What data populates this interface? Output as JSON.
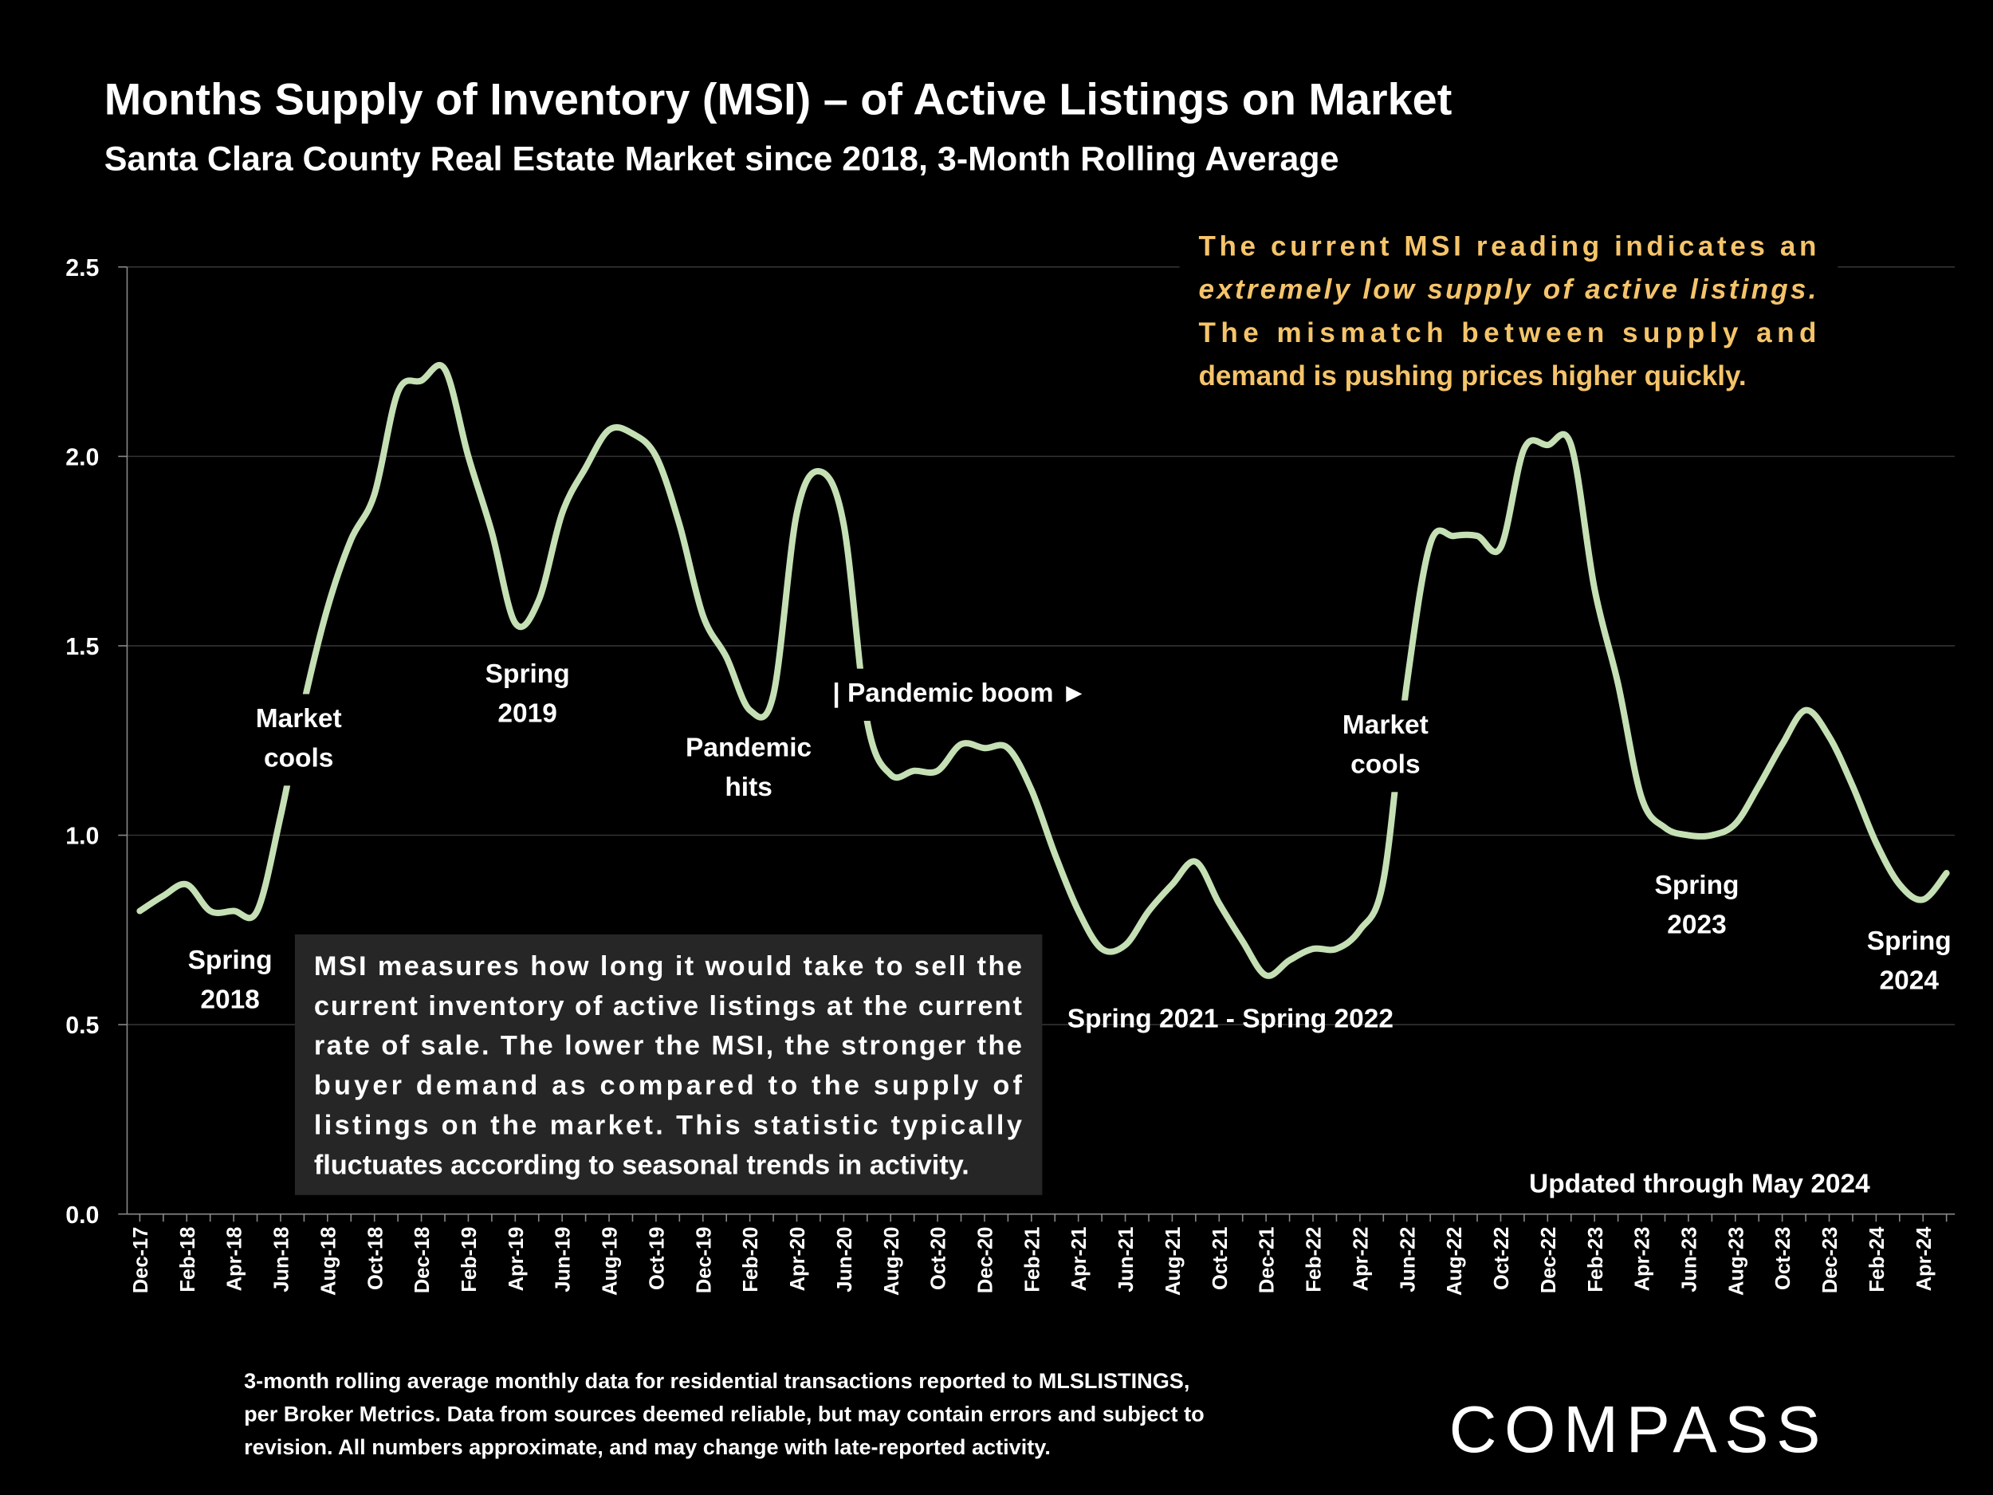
{
  "title": "Months Supply of Inventory (MSI) – of Active Listings on Market",
  "subtitle": "Santa Clara County Real Estate Market since 2018, 3-Month Rolling Average",
  "chart_data": {
    "type": "line",
    "ylim": [
      0,
      2.5
    ],
    "yticks": [
      "0.0",
      "0.5",
      "1.0",
      "1.5",
      "2.0",
      "2.5"
    ],
    "grid": true,
    "line_color": "#c5e0b4",
    "x_tick_labels": [
      "Dec-17",
      "Feb-18",
      "Apr-18",
      "Jun-18",
      "Aug-18",
      "Oct-18",
      "Dec-18",
      "Feb-19",
      "Apr-19",
      "Jun-19",
      "Aug-19",
      "Oct-19",
      "Dec-19",
      "Feb-20",
      "Apr-20",
      "Jun-20",
      "Aug-20",
      "Oct-20",
      "Dec-20",
      "Feb-21",
      "Apr-21",
      "Jun-21",
      "Aug-21",
      "Oct-21",
      "Dec-21",
      "Feb-22",
      "Apr-22",
      "Jun-22",
      "Aug-22",
      "Oct-22",
      "Dec-22",
      "Feb-23",
      "Apr-23",
      "Jun-23",
      "Aug-23",
      "Oct-23",
      "Dec-23",
      "Feb-24",
      "Apr-24"
    ],
    "x_start": "Dec-17",
    "x_end": "May-24",
    "values": [
      0.8,
      0.84,
      0.87,
      0.8,
      0.8,
      0.8,
      1.05,
      1.35,
      1.6,
      1.78,
      1.9,
      2.17,
      2.2,
      2.23,
      2.0,
      1.8,
      1.56,
      1.62,
      1.85,
      1.97,
      2.07,
      2.06,
      2.0,
      1.82,
      1.58,
      1.47,
      1.33,
      1.37,
      1.85,
      1.96,
      1.82,
      1.3,
      1.16,
      1.17,
      1.17,
      1.24,
      1.23,
      1.23,
      1.12,
      0.95,
      0.8,
      0.7,
      0.71,
      0.8,
      0.87,
      0.93,
      0.82,
      0.72,
      0.63,
      0.67,
      0.7,
      0.7,
      0.75,
      0.88,
      1.4,
      1.77,
      1.79,
      1.79,
      1.76,
      2.02,
      2.03,
      2.03,
      1.65,
      1.4,
      1.1,
      1.02,
      1.0,
      1.0,
      1.03,
      1.13,
      1.24,
      1.33,
      1.26,
      1.13,
      0.98,
      0.87,
      0.83,
      0.9
    ],
    "annotations": [
      {
        "id": "spring2018",
        "lines": [
          "Spring",
          "2018"
        ]
      },
      {
        "id": "cools2018",
        "lines": [
          "Market",
          "cools"
        ]
      },
      {
        "id": "spring2019",
        "lines": [
          "Spring",
          "2019"
        ]
      },
      {
        "id": "pandemic",
        "lines": [
          "Pandemic",
          "hits"
        ]
      },
      {
        "id": "boom",
        "lines": [
          "| Pandemic boom ►"
        ]
      },
      {
        "id": "spring2122",
        "lines": [
          "Spring 2021 - Spring 2022"
        ]
      },
      {
        "id": "cools2022",
        "lines": [
          "Market",
          "cools"
        ]
      },
      {
        "id": "spring2023",
        "lines": [
          "Spring",
          "2023"
        ]
      },
      {
        "id": "spring2024",
        "lines": [
          "Spring",
          "2024"
        ]
      }
    ]
  },
  "callout": {
    "lines": [
      "The current MSI reading indicates an",
      "extremely low supply of active listings.",
      "The mismatch between supply and",
      "demand is pushing prices higher quickly."
    ],
    "color": "#f5c46a"
  },
  "info_box": {
    "lines": [
      "MSI measures how long it would take to sell the",
      "current inventory of active listings at the current",
      "rate of sale. The lower the MSI, the stronger the",
      "buyer demand as compared to the supply of",
      "listings on the market. This statistic typically",
      "fluctuates according to seasonal trends in activity."
    ]
  },
  "updated": "Updated through May 2024",
  "footer": {
    "lines": [
      "3-month rolling average monthly data for residential transactions reported to MLSLISTINGS,",
      "per Broker Metrics. Data from sources deemed reliable, but may contain errors and subject to",
      "revision. All numbers approximate, and may change with late-reported activity."
    ]
  },
  "logo": "COMPASS"
}
